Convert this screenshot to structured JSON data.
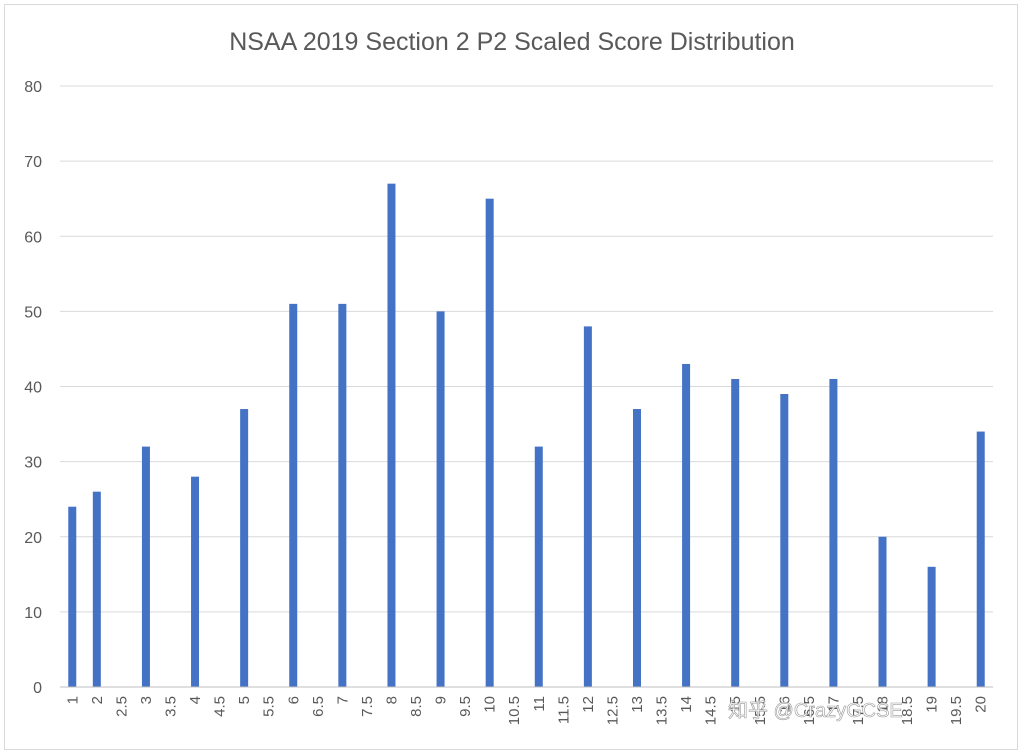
{
  "chart_data": {
    "type": "bar",
    "title": "NSAA 2019 Section 2 P2 Scaled Score Distribution",
    "xlabel": "",
    "ylabel": "",
    "ylim": [
      0,
      80
    ],
    "yticks": [
      0,
      10,
      20,
      30,
      40,
      50,
      60,
      70,
      80
    ],
    "grid": true,
    "color": "#4472c4",
    "categories": [
      "1",
      "2",
      "2.5",
      "3",
      "3.5",
      "4",
      "4.5",
      "5",
      "5.5",
      "6",
      "6.5",
      "7",
      "7.5",
      "8",
      "8.5",
      "9",
      "9.5",
      "10",
      "10.5",
      "11",
      "11.5",
      "12",
      "12.5",
      "13",
      "13.5",
      "14",
      "14.5",
      "15",
      "15.5",
      "16",
      "16.5",
      "17",
      "17.5",
      "18",
      "18.5",
      "19",
      "19.5",
      "20"
    ],
    "values": [
      24,
      26,
      0,
      32,
      0,
      28,
      0,
      37,
      0,
      51,
      0,
      51,
      0,
      67,
      0,
      50,
      0,
      65,
      0,
      32,
      0,
      48,
      0,
      37,
      0,
      43,
      0,
      41,
      0,
      39,
      0,
      41,
      0,
      20,
      0,
      16,
      0,
      34
    ]
  },
  "watermark": {
    "text": "知乎 @CrazyGCSE"
  }
}
